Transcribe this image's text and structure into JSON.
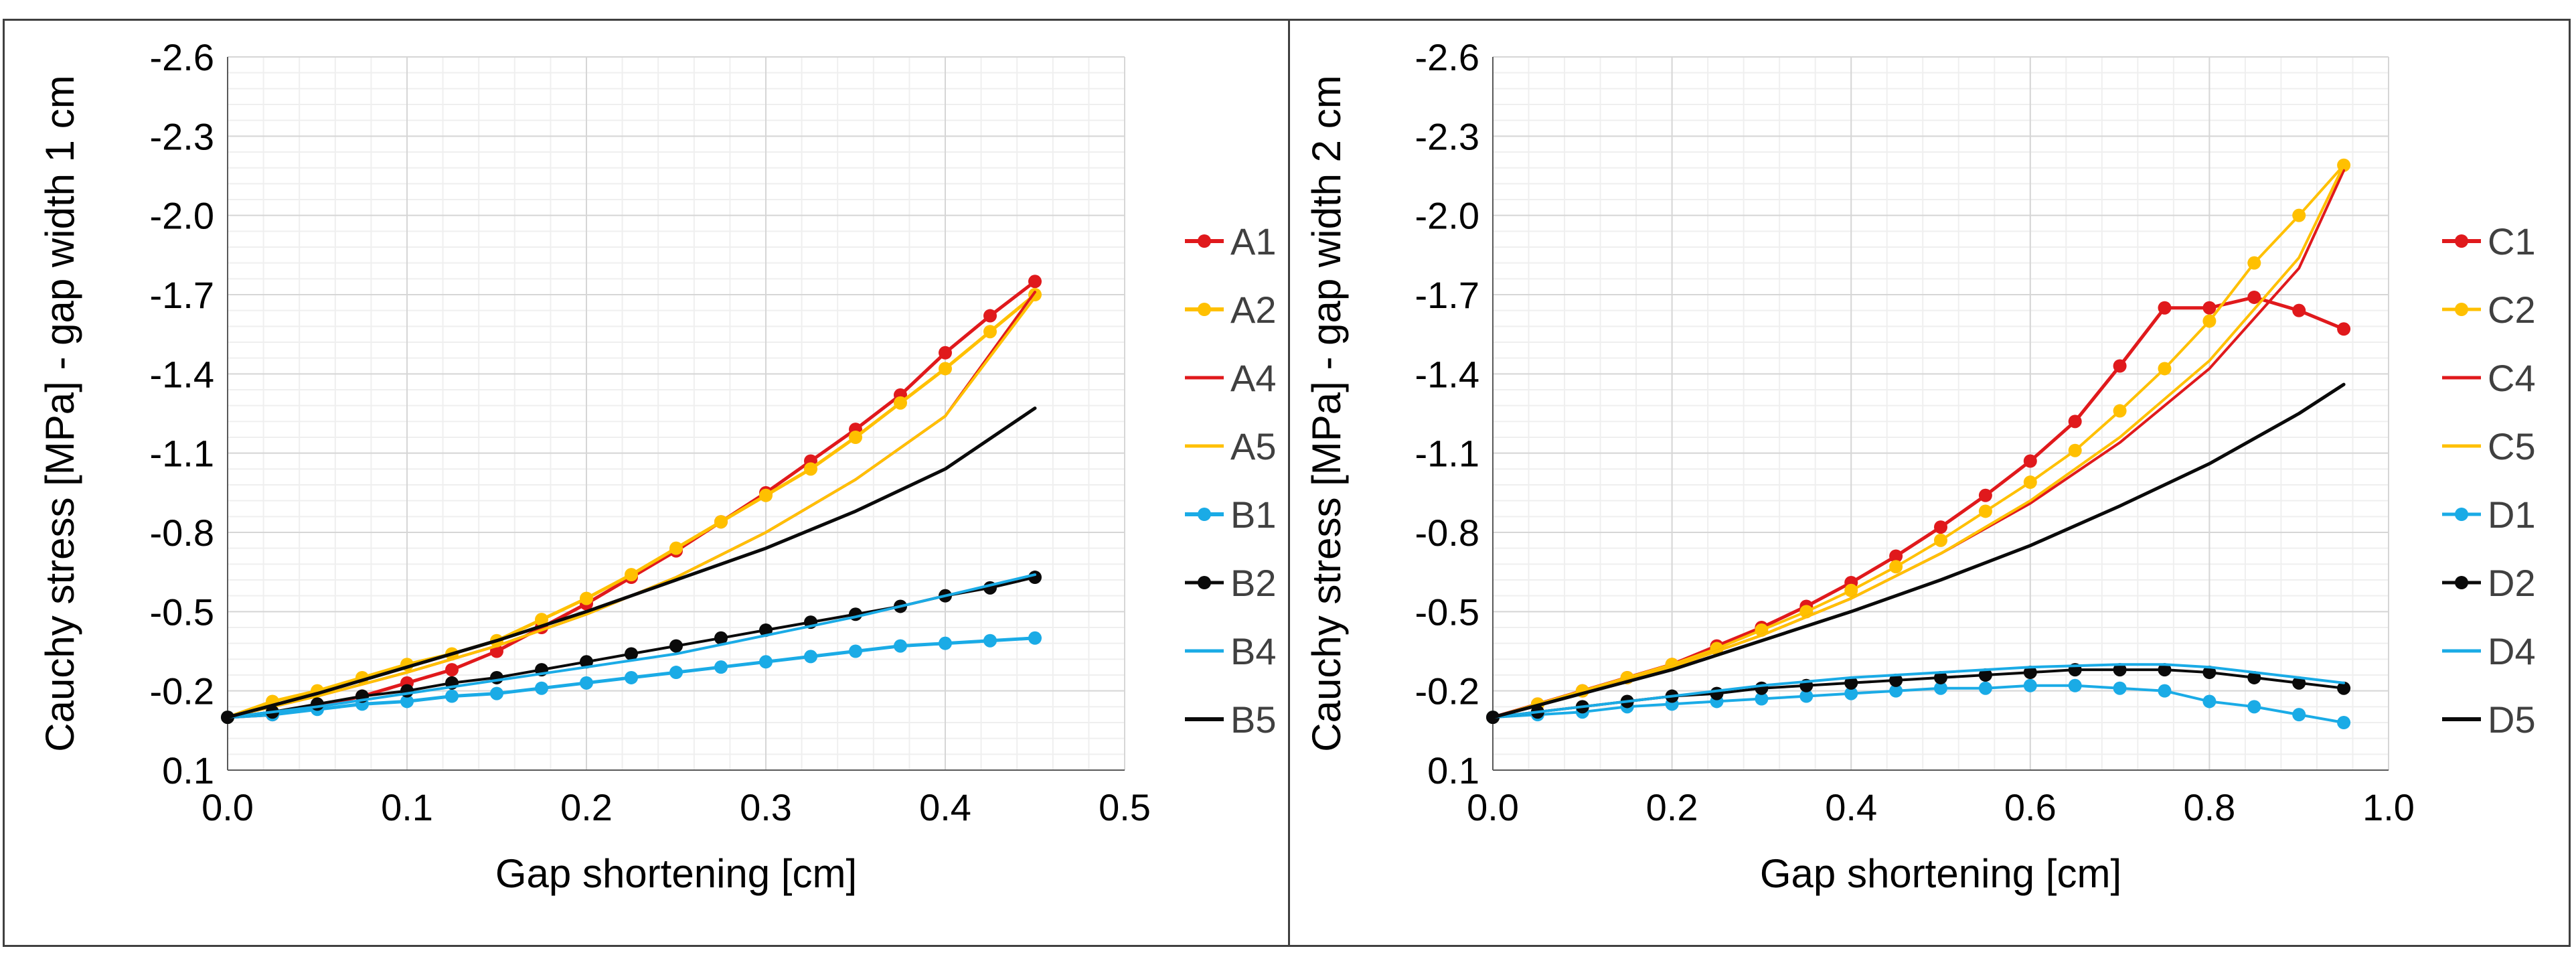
{
  "chart_data": [
    {
      "type": "line",
      "xlabel": "Gap shortening [cm]",
      "ylabel": "Cauchy stress [MPa] - gap width 1 cm",
      "xlim": [
        0,
        0.5
      ],
      "ylim": [
        0.1,
        -2.6
      ],
      "y_reversed": true,
      "xticks": [
        "0.0",
        "0.1",
        "0.2",
        "0.3",
        "0.4",
        "0.5"
      ],
      "yticks": [
        "-2.6",
        "-2.3",
        "-2.0",
        "-1.7",
        "-1.4",
        "-1.1",
        "-0.8",
        "-0.5",
        "-0.2",
        "0.1"
      ],
      "grid": true,
      "legend_position": "right",
      "series": [
        {
          "name": "A1",
          "color": "#e0191c",
          "marker": true,
          "width": 5,
          "x": [
            0,
            0.025,
            0.05,
            0.075,
            0.1,
            0.125,
            0.15,
            0.175,
            0.2,
            0.225,
            0.25,
            0.275,
            0.3,
            0.325,
            0.35,
            0.375,
            0.4,
            0.425,
            0.45
          ],
          "y": [
            -0.1,
            -0.11,
            -0.14,
            -0.18,
            -0.23,
            -0.28,
            -0.35,
            -0.44,
            -0.53,
            -0.63,
            -0.73,
            -0.84,
            -0.95,
            -1.07,
            -1.19,
            -1.32,
            -1.48,
            -1.62,
            -1.75
          ]
        },
        {
          "name": "A2",
          "color": "#ffc000",
          "marker": true,
          "width": 5,
          "x": [
            0,
            0.025,
            0.05,
            0.075,
            0.1,
            0.125,
            0.15,
            0.175,
            0.2,
            0.225,
            0.25,
            0.275,
            0.3,
            0.325,
            0.35,
            0.375,
            0.4,
            0.425,
            0.45
          ],
          "y": [
            -0.1,
            -0.16,
            -0.2,
            -0.25,
            -0.3,
            -0.34,
            -0.39,
            -0.47,
            -0.55,
            -0.64,
            -0.74,
            -0.84,
            -0.94,
            -1.04,
            -1.16,
            -1.29,
            -1.42,
            -1.56,
            -1.7
          ]
        },
        {
          "name": "A4",
          "color": "#e0191c",
          "marker": false,
          "width": 4,
          "x": [
            0,
            0.05,
            0.1,
            0.15,
            0.2,
            0.25,
            0.3,
            0.35,
            0.4,
            0.45
          ],
          "y": [
            -0.1,
            -0.18,
            -0.27,
            -0.37,
            -0.49,
            -0.63,
            -0.8,
            -1.0,
            -1.24,
            -1.71
          ]
        },
        {
          "name": "A5",
          "color": "#ffc000",
          "marker": false,
          "width": 4,
          "x": [
            0,
            0.05,
            0.1,
            0.15,
            0.2,
            0.25,
            0.3,
            0.35,
            0.4,
            0.45
          ],
          "y": [
            -0.1,
            -0.18,
            -0.27,
            -0.37,
            -0.49,
            -0.63,
            -0.8,
            -1.0,
            -1.24,
            -1.69
          ]
        },
        {
          "name": "B1",
          "color": "#1aabe6",
          "marker": true,
          "width": 5,
          "x": [
            0,
            0.025,
            0.05,
            0.075,
            0.1,
            0.125,
            0.15,
            0.175,
            0.2,
            0.225,
            0.25,
            0.275,
            0.3,
            0.325,
            0.35,
            0.375,
            0.4,
            0.425,
            0.45
          ],
          "y": [
            -0.1,
            -0.11,
            -0.13,
            -0.15,
            -0.16,
            -0.18,
            -0.19,
            -0.21,
            -0.23,
            -0.25,
            -0.27,
            -0.29,
            -0.31,
            -0.33,
            -0.35,
            -0.37,
            -0.38,
            -0.39,
            -0.4
          ]
        },
        {
          "name": "B2",
          "color": "#0a0a0a",
          "marker": true,
          "width": 4,
          "x": [
            0,
            0.025,
            0.05,
            0.075,
            0.1,
            0.125,
            0.15,
            0.175,
            0.2,
            0.225,
            0.25,
            0.275,
            0.3,
            0.325,
            0.35,
            0.375,
            0.4,
            0.425,
            0.45
          ],
          "y": [
            -0.1,
            -0.12,
            -0.15,
            -0.18,
            -0.2,
            -0.23,
            -0.25,
            -0.28,
            -0.31,
            -0.34,
            -0.37,
            -0.4,
            -0.43,
            -0.46,
            -0.49,
            -0.52,
            -0.56,
            -0.59,
            -0.63
          ]
        },
        {
          "name": "B4",
          "color": "#1aabe6",
          "marker": false,
          "width": 4,
          "x": [
            0,
            0.05,
            0.1,
            0.15,
            0.2,
            0.25,
            0.3,
            0.35,
            0.4,
            0.45
          ],
          "y": [
            -0.1,
            -0.14,
            -0.19,
            -0.24,
            -0.29,
            -0.34,
            -0.41,
            -0.48,
            -0.56,
            -0.64
          ]
        },
        {
          "name": "B5",
          "color": "#0a0a0a",
          "marker": false,
          "width": 5,
          "x": [
            0,
            0.05,
            0.1,
            0.15,
            0.2,
            0.25,
            0.3,
            0.35,
            0.4,
            0.45
          ],
          "y": [
            -0.1,
            -0.19,
            -0.29,
            -0.39,
            -0.5,
            -0.62,
            -0.74,
            -0.88,
            -1.04,
            -1.27
          ]
        }
      ]
    },
    {
      "type": "line",
      "xlabel": "Gap shortening [cm]",
      "ylabel": "Cauchy stress [MPa] - gap width 2 cm",
      "xlim": [
        0,
        1.0
      ],
      "ylim": [
        0.1,
        -2.6
      ],
      "y_reversed": true,
      "xticks": [
        "0.0",
        "0.2",
        "0.4",
        "0.6",
        "0.8",
        "1.0"
      ],
      "yticks": [
        "-2.6",
        "-2.3",
        "-2.0",
        "-1.7",
        "-1.4",
        "-1.1",
        "-0.8",
        "-0.5",
        "-0.2",
        "0.1"
      ],
      "grid": true,
      "legend_position": "right",
      "series": [
        {
          "name": "C1",
          "color": "#e0191c",
          "marker": true,
          "width": 5,
          "x": [
            0,
            0.05,
            0.1,
            0.15,
            0.2,
            0.25,
            0.3,
            0.35,
            0.4,
            0.45,
            0.5,
            0.55,
            0.6,
            0.65,
            0.7,
            0.75,
            0.8,
            0.85,
            0.9,
            0.95
          ],
          "y": [
            -0.1,
            -0.15,
            -0.2,
            -0.25,
            -0.3,
            -0.37,
            -0.44,
            -0.52,
            -0.61,
            -0.71,
            -0.82,
            -0.94,
            -1.07,
            -1.22,
            -1.43,
            -1.65,
            -1.65,
            -1.69,
            -1.64,
            -1.57
          ]
        },
        {
          "name": "C2",
          "color": "#ffc000",
          "marker": true,
          "width": 4,
          "x": [
            0,
            0.05,
            0.1,
            0.15,
            0.2,
            0.25,
            0.3,
            0.35,
            0.4,
            0.45,
            0.5,
            0.55,
            0.6,
            0.65,
            0.7,
            0.75,
            0.8,
            0.85,
            0.9,
            0.95
          ],
          "y": [
            -0.1,
            -0.15,
            -0.2,
            -0.25,
            -0.3,
            -0.36,
            -0.43,
            -0.5,
            -0.58,
            -0.67,
            -0.77,
            -0.88,
            -0.99,
            -1.11,
            -1.26,
            -1.42,
            -1.6,
            -1.82,
            -2.0,
            -2.19
          ]
        },
        {
          "name": "C4",
          "color": "#e0191c",
          "marker": false,
          "width": 4,
          "x": [
            0,
            0.1,
            0.2,
            0.3,
            0.4,
            0.5,
            0.6,
            0.7,
            0.8,
            0.9,
            0.95
          ],
          "y": [
            -0.1,
            -0.19,
            -0.29,
            -0.41,
            -0.55,
            -0.72,
            -0.91,
            -1.14,
            -1.42,
            -1.8,
            -2.17
          ]
        },
        {
          "name": "C5",
          "color": "#ffc000",
          "marker": false,
          "width": 4,
          "x": [
            0,
            0.1,
            0.2,
            0.3,
            0.4,
            0.5,
            0.6,
            0.7,
            0.8,
            0.9,
            0.95
          ],
          "y": [
            -0.1,
            -0.19,
            -0.29,
            -0.41,
            -0.55,
            -0.72,
            -0.92,
            -1.16,
            -1.45,
            -1.84,
            -2.19
          ]
        },
        {
          "name": "D1",
          "color": "#1aabe6",
          "marker": true,
          "width": 4,
          "x": [
            0,
            0.05,
            0.1,
            0.15,
            0.2,
            0.25,
            0.3,
            0.35,
            0.4,
            0.45,
            0.5,
            0.55,
            0.6,
            0.65,
            0.7,
            0.75,
            0.8,
            0.85,
            0.9,
            0.95
          ],
          "y": [
            -0.1,
            -0.11,
            -0.12,
            -0.14,
            -0.15,
            -0.16,
            -0.17,
            -0.18,
            -0.19,
            -0.2,
            -0.21,
            -0.21,
            -0.22,
            -0.22,
            -0.21,
            -0.2,
            -0.16,
            -0.14,
            -0.11,
            -0.08
          ]
        },
        {
          "name": "D2",
          "color": "#0a0a0a",
          "marker": true,
          "width": 4,
          "x": [
            0,
            0.05,
            0.1,
            0.15,
            0.2,
            0.25,
            0.3,
            0.35,
            0.4,
            0.45,
            0.5,
            0.55,
            0.6,
            0.65,
            0.7,
            0.75,
            0.8,
            0.85,
            0.9,
            0.95
          ],
          "y": [
            -0.1,
            -0.12,
            -0.14,
            -0.16,
            -0.18,
            -0.19,
            -0.21,
            -0.22,
            -0.23,
            -0.24,
            -0.25,
            -0.26,
            -0.27,
            -0.28,
            -0.28,
            -0.28,
            -0.27,
            -0.25,
            -0.23,
            -0.21
          ]
        },
        {
          "name": "D4",
          "color": "#1aabe6",
          "marker": false,
          "width": 4,
          "x": [
            0,
            0.1,
            0.2,
            0.3,
            0.4,
            0.5,
            0.6,
            0.7,
            0.75,
            0.8,
            0.9,
            0.95
          ],
          "y": [
            -0.1,
            -0.14,
            -0.18,
            -0.22,
            -0.25,
            -0.27,
            -0.29,
            -0.3,
            -0.3,
            -0.29,
            -0.25,
            -0.23
          ]
        },
        {
          "name": "D5",
          "color": "#0a0a0a",
          "marker": false,
          "width": 5,
          "x": [
            0,
            0.1,
            0.2,
            0.3,
            0.4,
            0.5,
            0.6,
            0.7,
            0.8,
            0.9,
            0.95
          ],
          "y": [
            -0.1,
            -0.19,
            -0.28,
            -0.39,
            -0.5,
            -0.62,
            -0.75,
            -0.9,
            -1.06,
            -1.25,
            -1.36
          ]
        }
      ]
    }
  ]
}
